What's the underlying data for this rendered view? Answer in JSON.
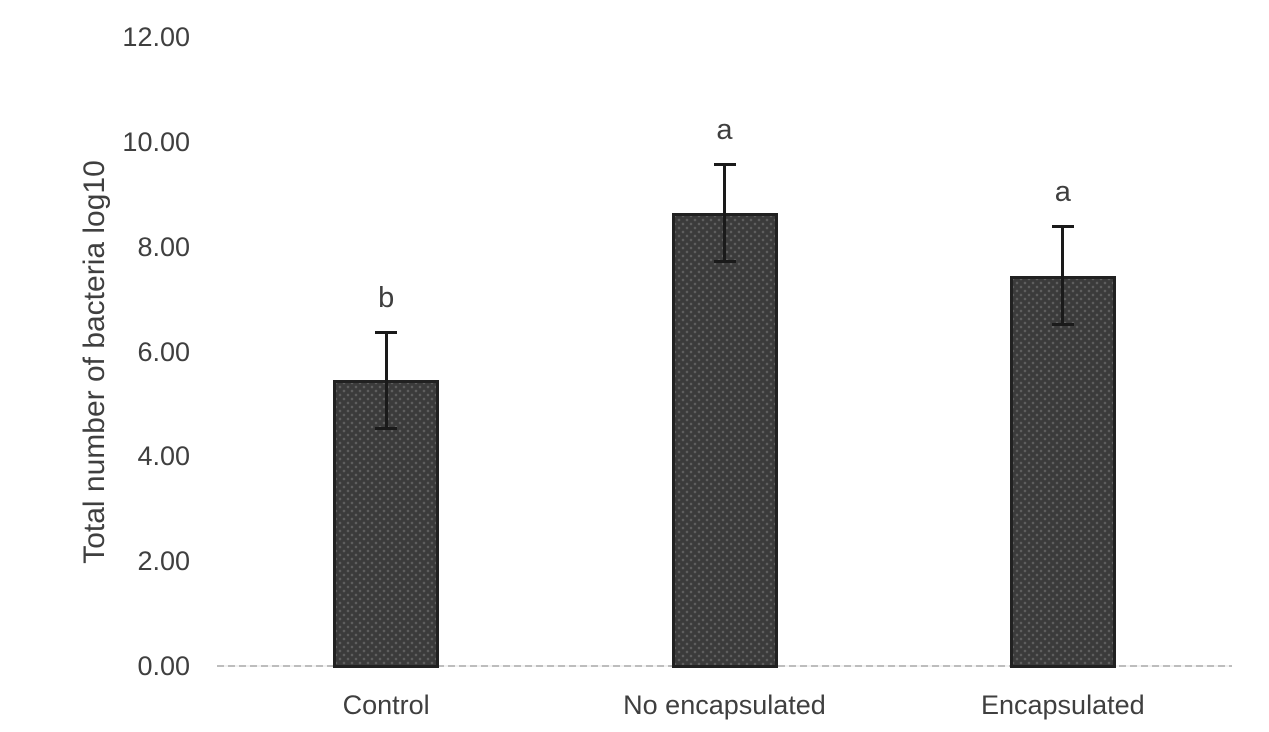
{
  "chart_data": {
    "type": "bar",
    "title": "",
    "xlabel": "",
    "ylabel": "Total number of bacteria log10",
    "categories": [
      "Control",
      "No encapsulated",
      "Encapsulated"
    ],
    "values": [
      5.45,
      8.65,
      7.45
    ],
    "errors": [
      0.95,
      0.95,
      0.97
    ],
    "significance_labels": [
      "b",
      "a",
      "a"
    ],
    "ylim": [
      0,
      12
    ],
    "ytick_step": 2,
    "ytick_labels": [
      "0.00",
      "2.00",
      "4.00",
      "6.00",
      "8.00",
      "10.00",
      "12.00"
    ],
    "grid": false,
    "legend": "none",
    "colors": {
      "bar_fill": "#3b3b3b",
      "bar_pattern_dots": "#5e5e5e",
      "bar_border": "#212121",
      "error_bar": "#1a1a1a",
      "axis_line": "#bdbdbd",
      "text": "#3f3f3f",
      "background": "#ffffff"
    }
  }
}
